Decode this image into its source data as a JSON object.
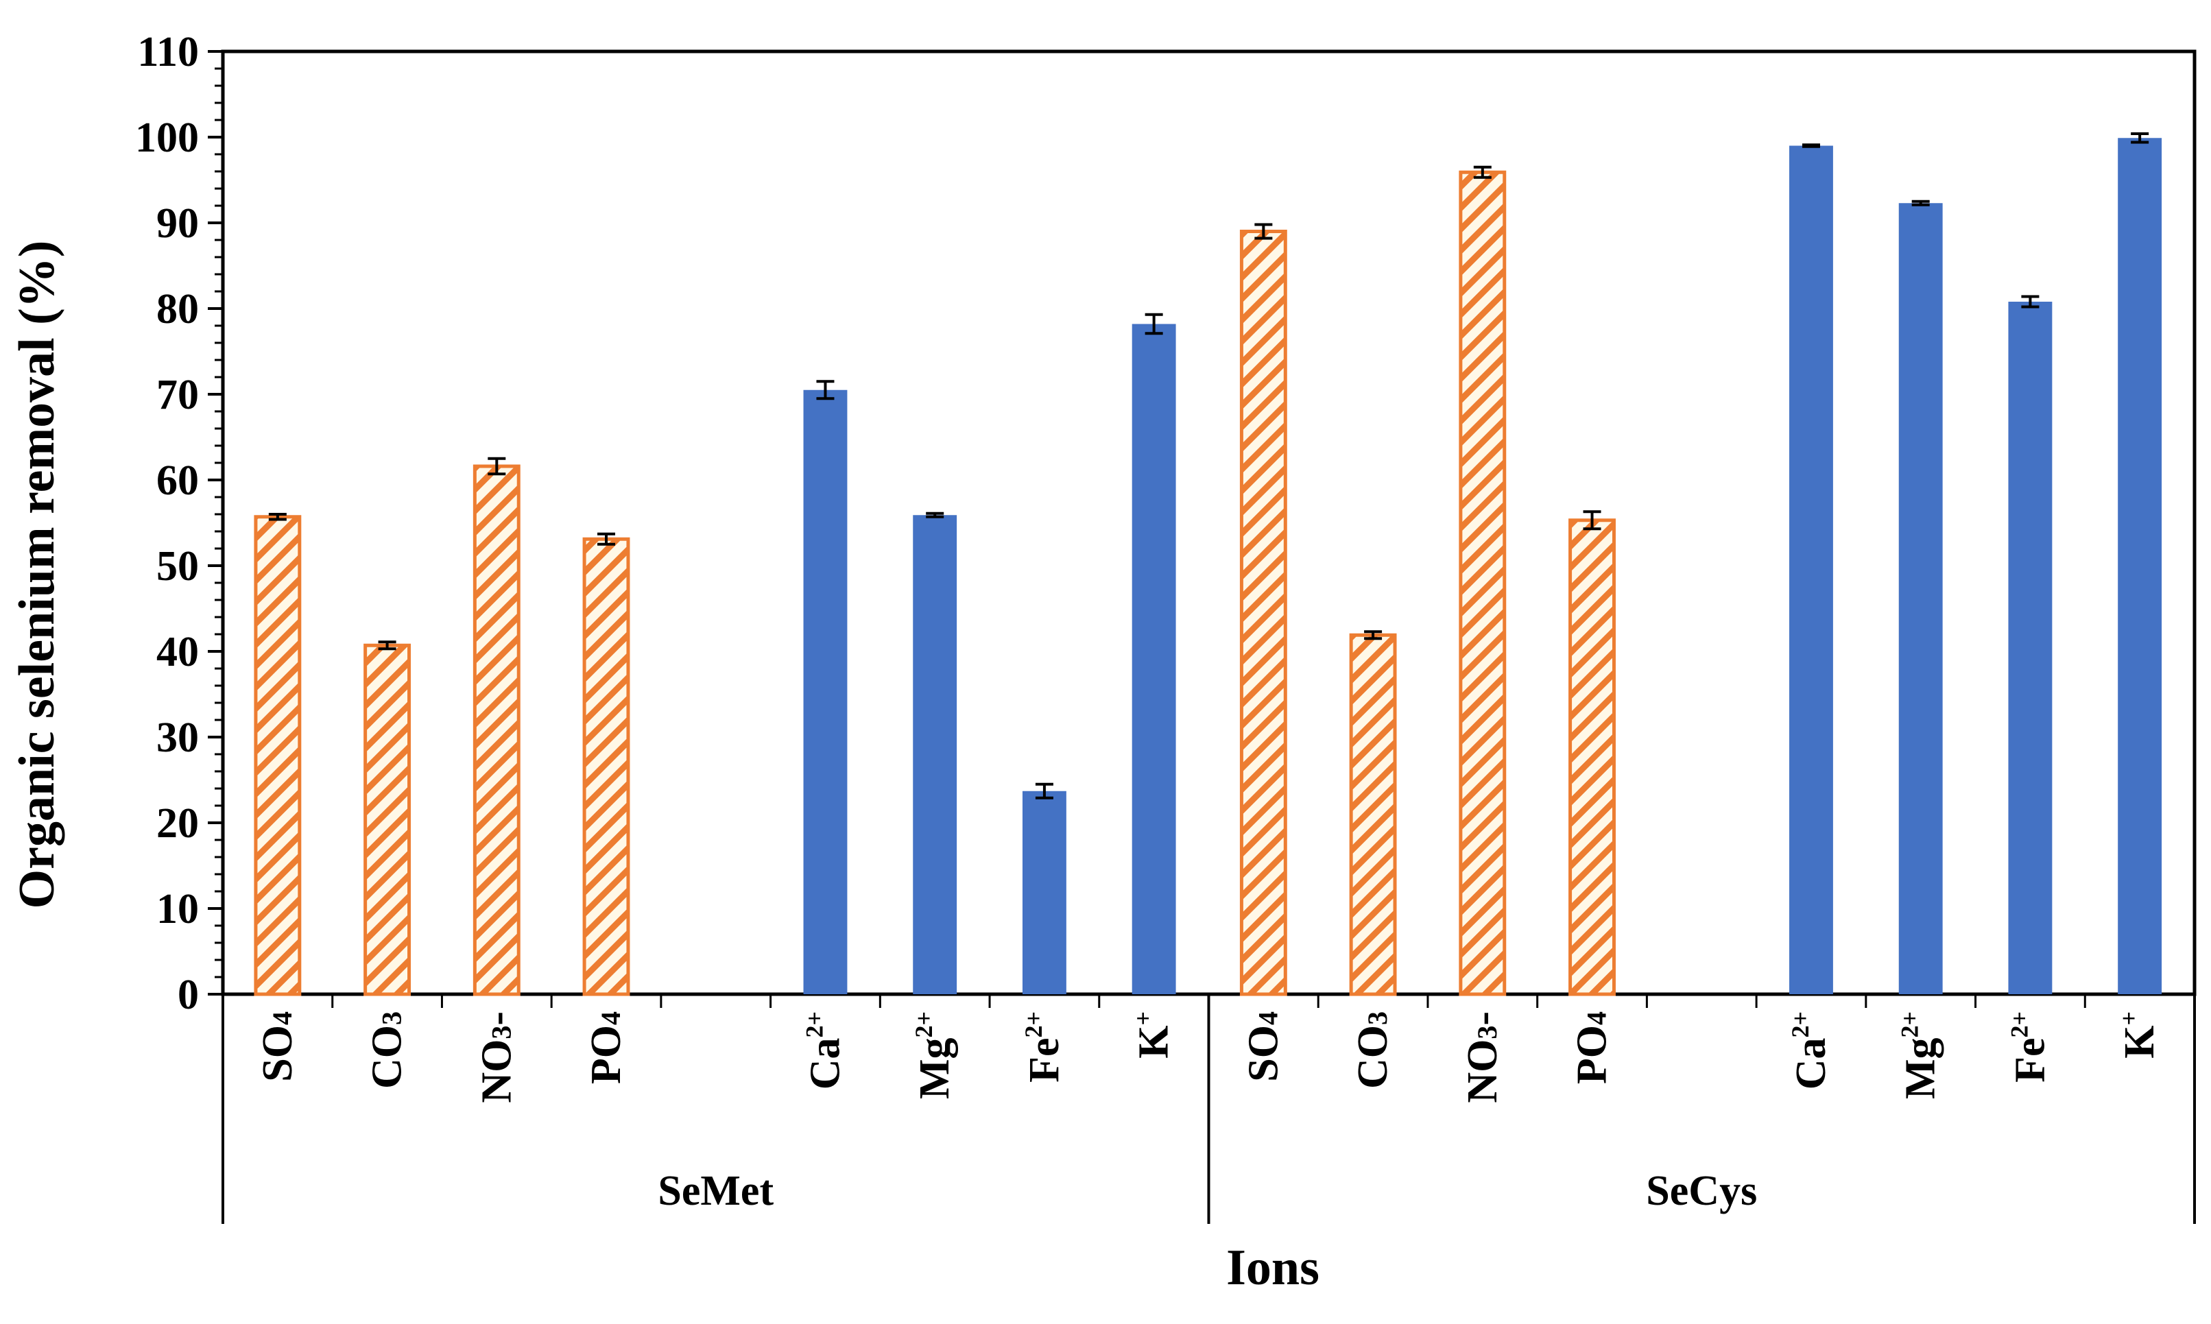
{
  "chart_data": {
    "type": "bar",
    "ylabel": "Organic selenium removal  (%)",
    "xlabel": "Ions",
    "ylim": [
      0,
      110
    ],
    "yticks": [
      "0",
      "10",
      "20",
      "30",
      "40",
      "50",
      "60",
      "70",
      "80",
      "90",
      "100",
      "110"
    ],
    "grid": false,
    "legend": "none",
    "colors": {
      "anion_stroke": "#ED7D31",
      "anion_hatch": "#ED7D31",
      "anion_fill": "#FFF8E7",
      "cation_fill": "#4472C4"
    },
    "groups": [
      {
        "name": "SeMet",
        "categories": [
          {
            "base": "SO",
            "sub": "4",
            "sup": "",
            "kind": "anion",
            "value": 55.7,
            "err": 0.3
          },
          {
            "base": "CO",
            "sub": "3",
            "sup": "",
            "kind": "anion",
            "value": 40.7,
            "err": 0.4
          },
          {
            "base": "NO",
            "sub": "3",
            "sup": "",
            "tail": "-",
            "kind": "anion",
            "value": 61.6,
            "err": 0.9
          },
          {
            "base": "PO",
            "sub": "4",
            "sup": "",
            "kind": "anion",
            "value": 53.1,
            "err": 0.6
          },
          {
            "base": "",
            "sub": "",
            "sup": "",
            "kind": "empty",
            "value": null,
            "err": null
          },
          {
            "base": "Ca",
            "sub": "",
            "sup": "2+",
            "kind": "cation",
            "value": 70.5,
            "err": 1.0
          },
          {
            "base": "Mg",
            "sub": "",
            "sup": "2+",
            "kind": "cation",
            "value": 55.9,
            "err": 0.2
          },
          {
            "base": "Fe",
            "sub": "",
            "sup": "2+",
            "kind": "cation",
            "value": 23.7,
            "err": 0.8
          },
          {
            "base": "K",
            "sub": "",
            "sup": "+",
            "kind": "cation",
            "value": 78.2,
            "err": 1.1
          }
        ]
      },
      {
        "name": "SeCys",
        "categories": [
          {
            "base": "SO",
            "sub": "4",
            "sup": "",
            "kind": "anion",
            "value": 89.0,
            "err": 0.8
          },
          {
            "base": "CO",
            "sub": "3",
            "sup": "",
            "kind": "anion",
            "value": 41.9,
            "err": 0.4
          },
          {
            "base": "NO",
            "sub": "3",
            "sup": "",
            "tail": "-",
            "kind": "anion",
            "value": 95.9,
            "err": 0.6
          },
          {
            "base": "PO",
            "sub": "4",
            "sup": "",
            "kind": "anion",
            "value": 55.3,
            "err": 1.0
          },
          {
            "base": "",
            "sub": "",
            "sup": "",
            "kind": "empty",
            "value": null,
            "err": null
          },
          {
            "base": "Ca",
            "sub": "",
            "sup": "2+",
            "kind": "cation",
            "value": 99.0,
            "err": 0.1
          },
          {
            "base": "Mg",
            "sub": "",
            "sup": "2+",
            "kind": "cation",
            "value": 92.3,
            "err": 0.2
          },
          {
            "base": "Fe",
            "sub": "",
            "sup": "2+",
            "kind": "cation",
            "value": 80.8,
            "err": 0.6
          },
          {
            "base": "K",
            "sub": "",
            "sup": "+",
            "kind": "cation",
            "value": 99.9,
            "err": 0.5
          }
        ]
      }
    ]
  }
}
